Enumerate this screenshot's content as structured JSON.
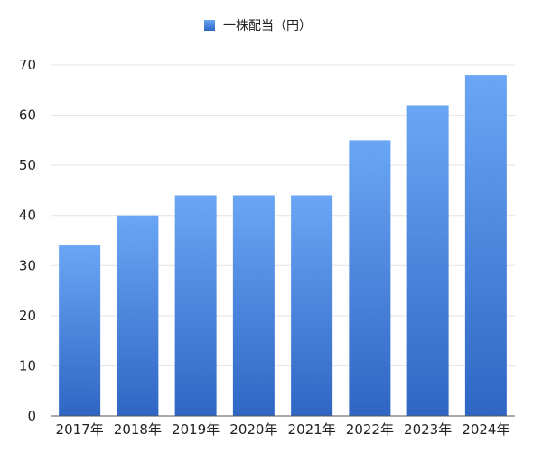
{
  "colors": {
    "bar_top": "#6aa6f5",
    "bar_bottom": "#2f66c3",
    "grid": "#e3e3e3",
    "axis": "#555555",
    "text": "#222222"
  },
  "chart_data": {
    "type": "bar",
    "categories": [
      "2017年",
      "2018年",
      "2019年",
      "2020年",
      "2021年",
      "2022年",
      "2023年",
      "2024年"
    ],
    "series": [
      {
        "name": "一株配当（円）",
        "values": [
          34,
          40,
          44,
          44,
          44,
          55,
          62,
          68
        ]
      }
    ],
    "yticks": [
      0,
      10,
      20,
      30,
      40,
      50,
      60,
      70
    ],
    "ylim": [
      0,
      70
    ],
    "grid": true,
    "legend_position": "top-center",
    "title": "",
    "xlabel": "",
    "ylabel": ""
  }
}
